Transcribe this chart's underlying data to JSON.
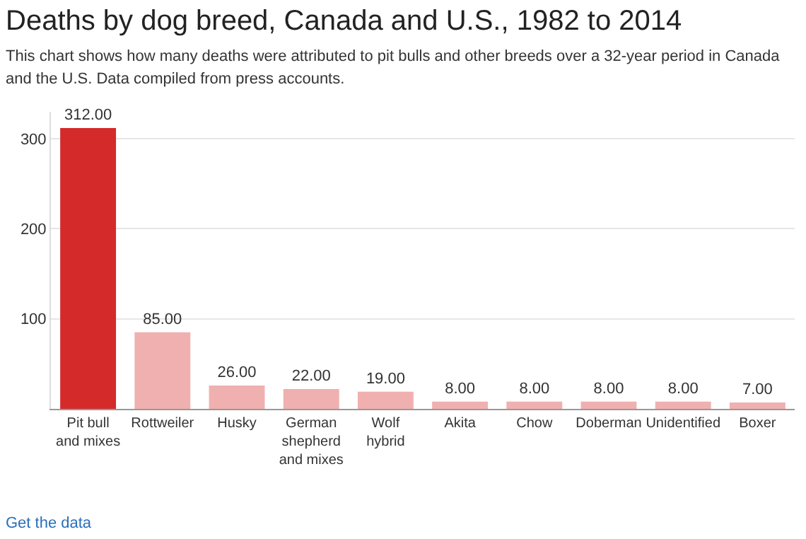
{
  "chart_data": {
    "type": "bar",
    "title": "Deaths by dog breed, Canada and U.S., 1982 to 2014",
    "subtitle": "This chart shows how many deaths were attributed to pit bulls and other breeds over a 32-year period in Canada and the U.S. Data compiled from press accounts.",
    "categories": [
      "Pit bull and mixes",
      "Rottweiler",
      "Husky",
      "German shepherd and mixes",
      "Wolf hybrid",
      "Akita",
      "Chow",
      "Doberman",
      "Unidentified",
      "Boxer"
    ],
    "values": [
      312,
      85,
      26,
      22,
      19,
      8,
      8,
      8,
      8,
      7
    ],
    "value_labels": [
      "312.00",
      "85.00",
      "26.00",
      "22.00",
      "19.00",
      "8.00",
      "8.00",
      "8.00",
      "8.00",
      "7.00"
    ],
    "colors": [
      "#d42a2a",
      "#f0b0b0",
      "#f0b0b0",
      "#f0b0b0",
      "#f0b0b0",
      "#f0b0b0",
      "#f0b0b0",
      "#f0b0b0",
      "#f0b0b0",
      "#f0b0b0"
    ],
    "ylim": [
      0,
      330
    ],
    "yticks": [
      100,
      200,
      300
    ],
    "grid": "y",
    "annotations": [
      "Get the data"
    ]
  }
}
